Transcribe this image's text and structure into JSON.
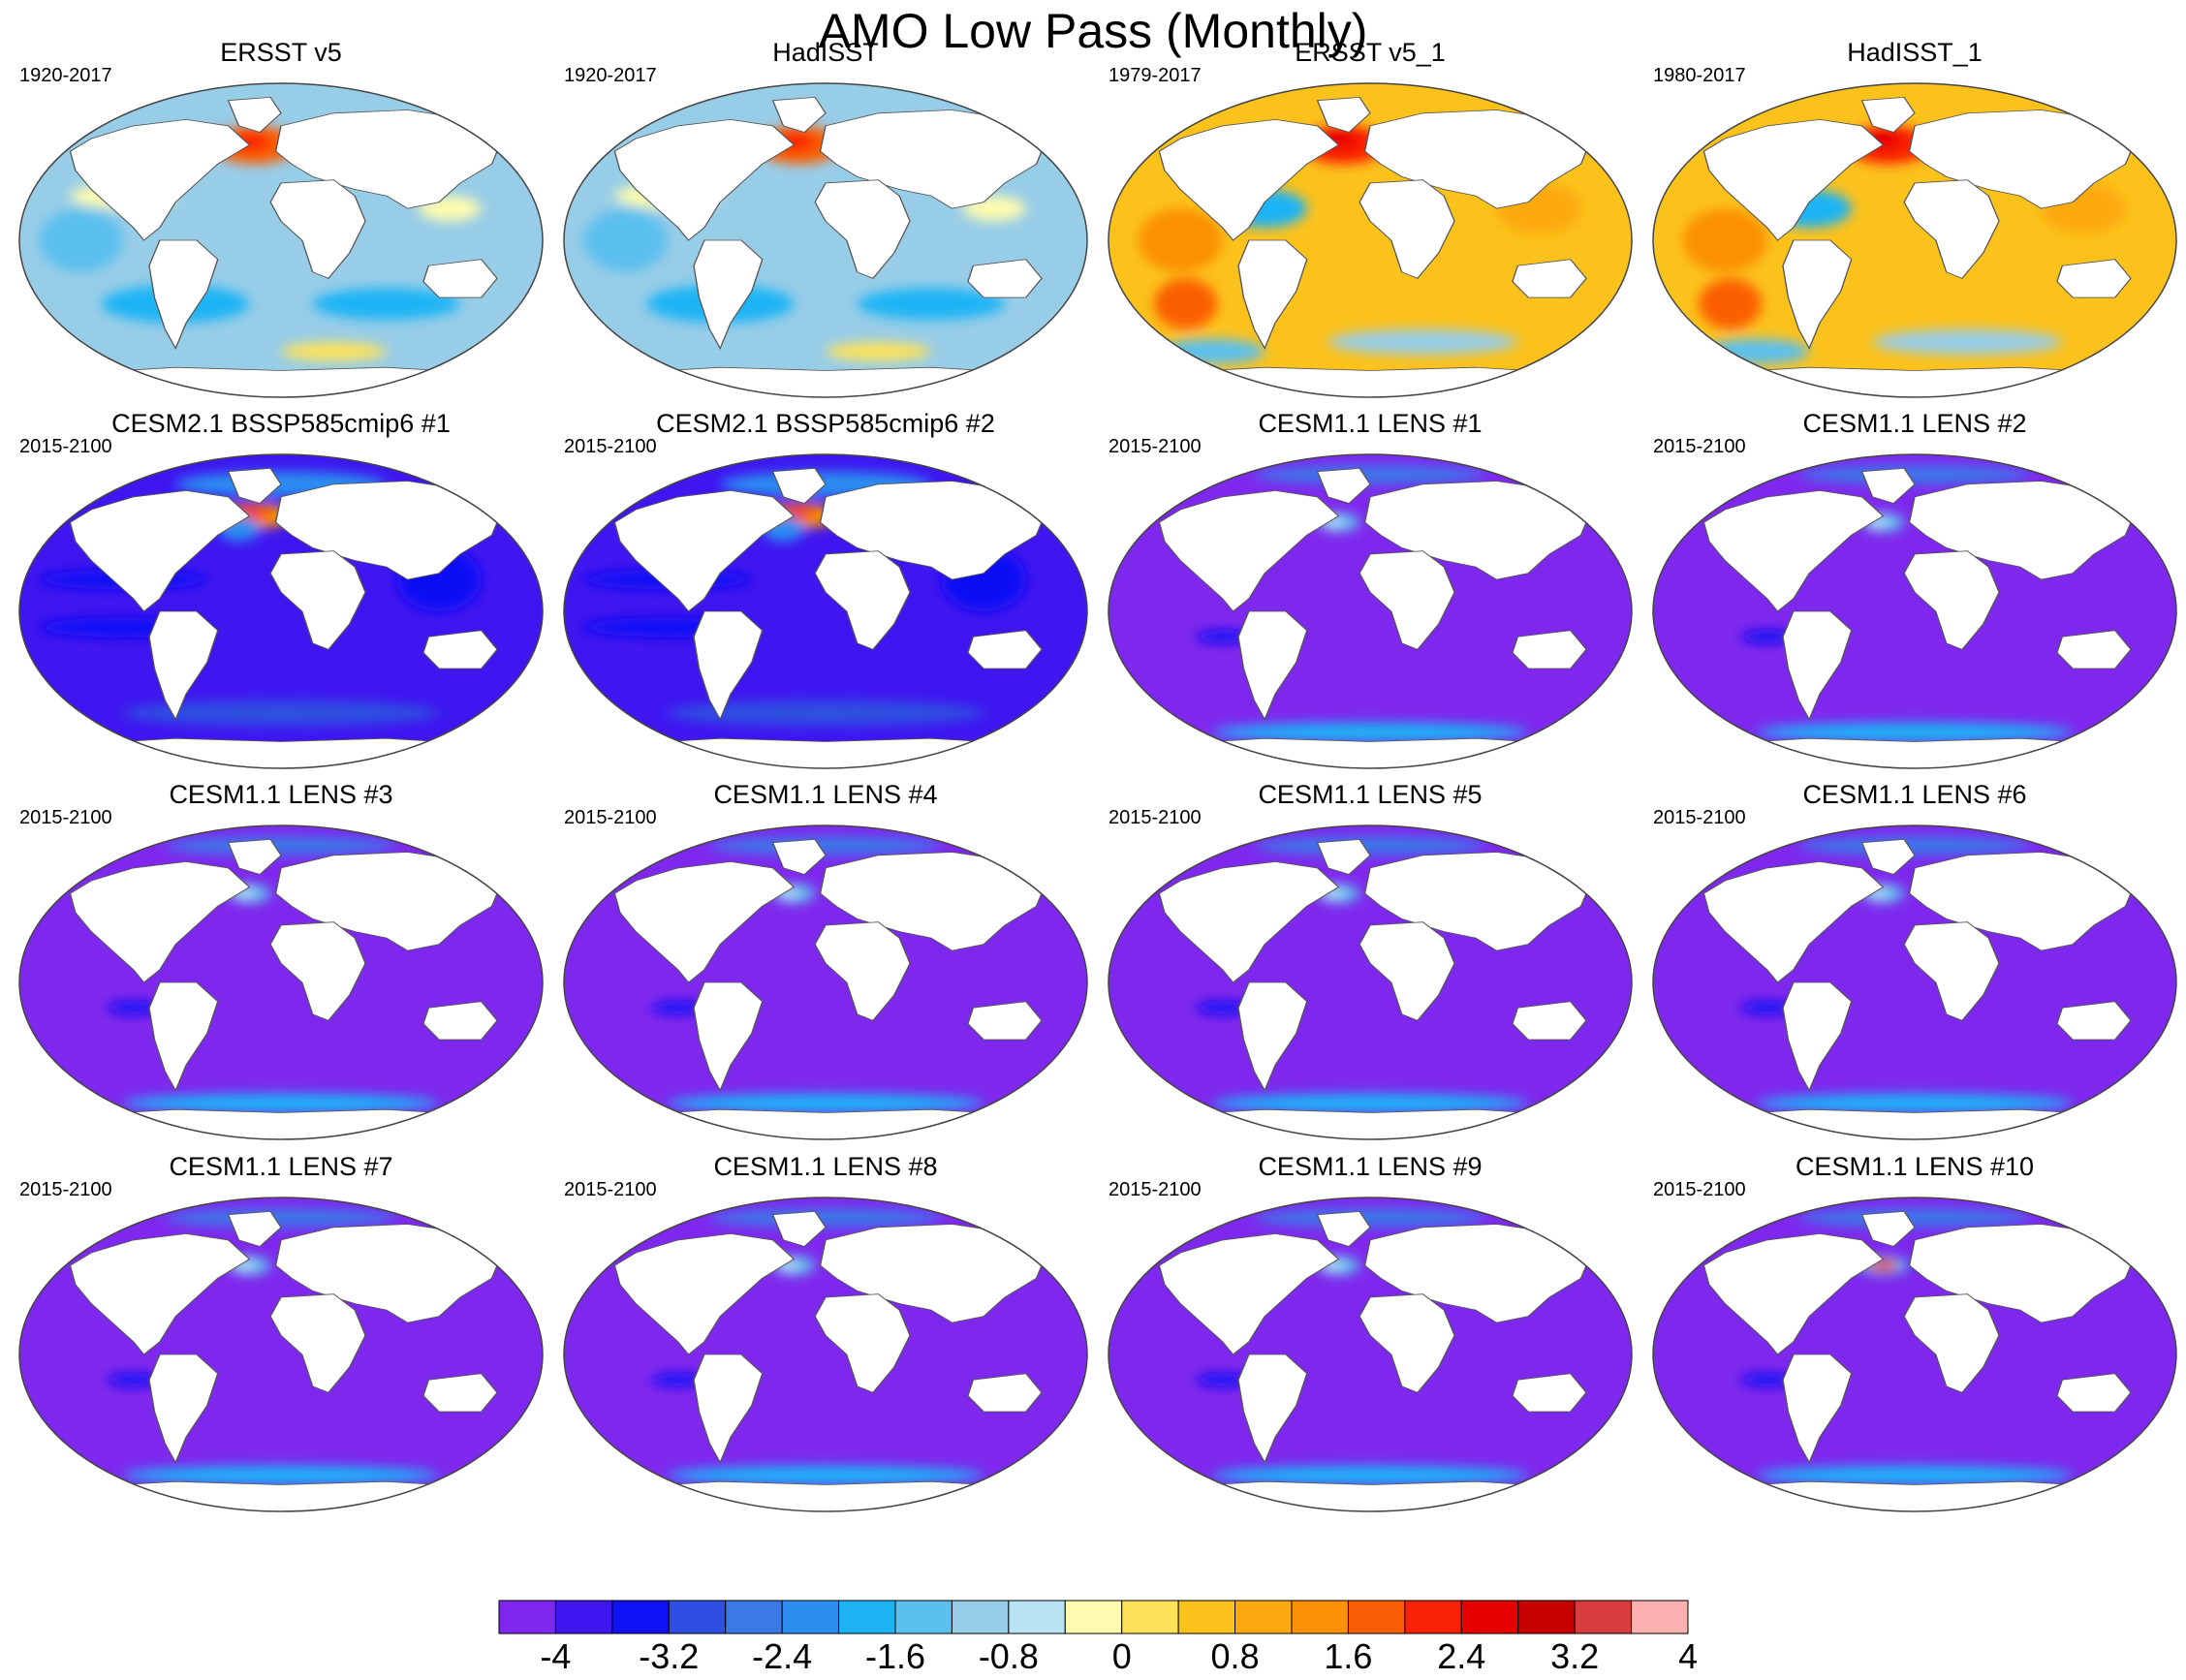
{
  "title": "AMO Low Pass (Monthly)",
  "panels": [
    {
      "title": "ERSST v5",
      "period": "1920-2017",
      "pattern": "obs_early"
    },
    {
      "title": "HadISST",
      "period": "1920-2017",
      "pattern": "obs_early"
    },
    {
      "title": "ERSST v5_1",
      "period": "1979-2017",
      "pattern": "obs_late"
    },
    {
      "title": "HadISST_1",
      "period": "1980-2017",
      "pattern": "obs_late"
    },
    {
      "title": "CESM2.1 BSSP585cmip6 #1",
      "period": "2015-2100",
      "pattern": "cesm2"
    },
    {
      "title": "CESM2.1 BSSP585cmip6 #2",
      "period": "2015-2100",
      "pattern": "cesm2"
    },
    {
      "title": "CESM1.1 LENS #1",
      "period": "2015-2100",
      "pattern": "lens"
    },
    {
      "title": "CESM1.1 LENS #2",
      "period": "2015-2100",
      "pattern": "lens"
    },
    {
      "title": "CESM1.1 LENS #3",
      "period": "2015-2100",
      "pattern": "lens"
    },
    {
      "title": "CESM1.1 LENS #4",
      "period": "2015-2100",
      "pattern": "lens"
    },
    {
      "title": "CESM1.1 LENS #5",
      "period": "2015-2100",
      "pattern": "lens"
    },
    {
      "title": "CESM1.1 LENS #6",
      "period": "2015-2100",
      "pattern": "lens"
    },
    {
      "title": "CESM1.1 LENS #7",
      "period": "2015-2100",
      "pattern": "lens"
    },
    {
      "title": "CESM1.1 LENS #8",
      "period": "2015-2100",
      "pattern": "lens"
    },
    {
      "title": "CESM1.1 LENS #9",
      "period": "2015-2100",
      "pattern": "lens"
    },
    {
      "title": "CESM1.1 LENS #10",
      "period": "2015-2100",
      "pattern": "lens_hot"
    }
  ],
  "colorbar": {
    "colors": [
      "#7f28ed",
      "#3f16f0",
      "#1111f5",
      "#2e4fe2",
      "#3b78e8",
      "#2b8ef0",
      "#1db4f5",
      "#5cc0ee",
      "#98cde8",
      "#b9e3f4",
      "#fdfbb0",
      "#fde25a",
      "#fcc21c",
      "#fca90f",
      "#fb9006",
      "#fb5f06",
      "#fb2106",
      "#e80000",
      "#c80000",
      "#d83c3c",
      "#fbb0b0"
    ],
    "ticks": [
      "-4",
      "-3.2",
      "-2.4",
      "-1.6",
      "-0.8",
      "0",
      "0.8",
      "1.6",
      "2.4",
      "3.2",
      "4"
    ]
  }
}
